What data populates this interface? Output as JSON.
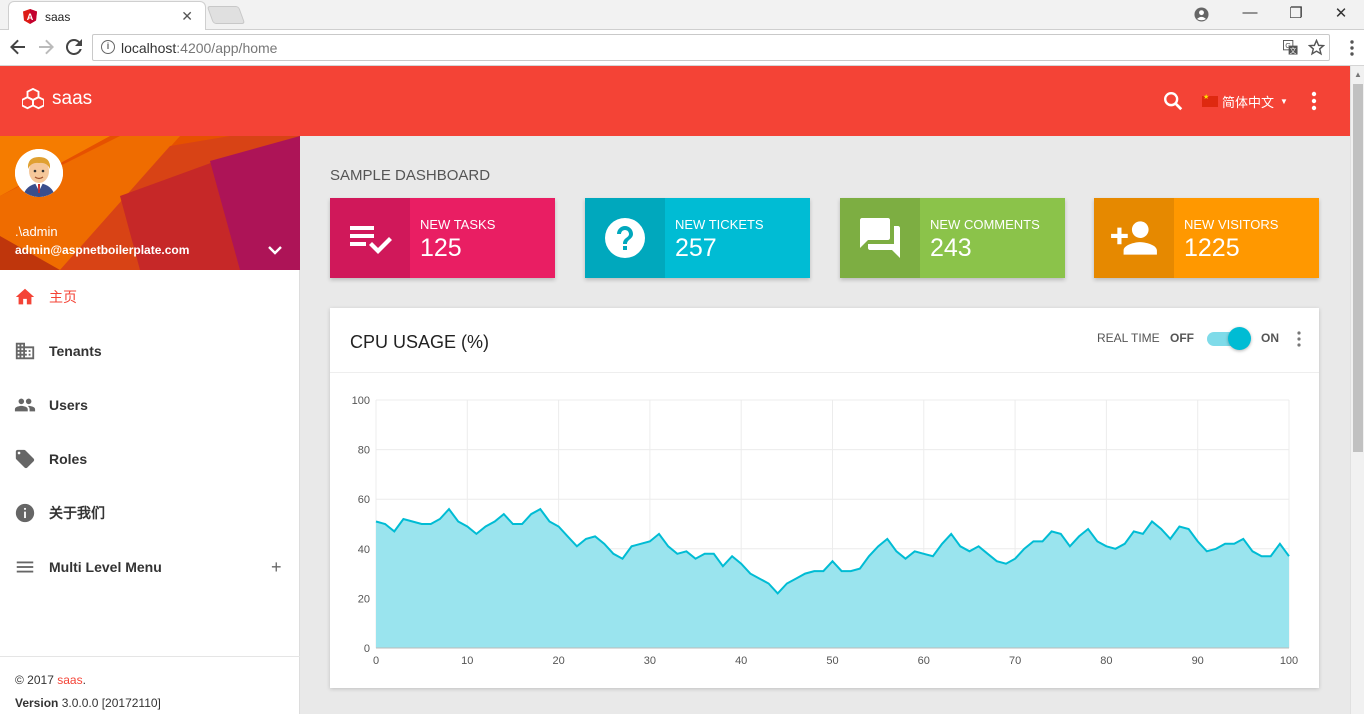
{
  "browser": {
    "tab_title": "saas",
    "tab_close": "✕",
    "url_host": "localhost",
    "url_path": ":4200/app/home",
    "window_minimize": "—",
    "window_maximize": "❐",
    "window_close": "✕"
  },
  "app": {
    "brand": "saas",
    "language": "简体中文",
    "accent_color": "#f44336"
  },
  "user": {
    "name": ".\\admin",
    "email": "admin@aspnetboilerplate.com"
  },
  "sidebar": {
    "items": [
      {
        "label": "主页",
        "icon": "home-icon",
        "active": true
      },
      {
        "label": "Tenants",
        "icon": "building-icon"
      },
      {
        "label": "Users",
        "icon": "people-icon"
      },
      {
        "label": "Roles",
        "icon": "tag-icon"
      },
      {
        "label": "关于我们",
        "icon": "info-icon"
      },
      {
        "label": "Multi Level Menu",
        "icon": "menu-icon",
        "expandable": "+"
      }
    ]
  },
  "footer": {
    "copyright_prefix": "© 2017 ",
    "brand": "saas",
    "brand_suffix": ".",
    "version_label": "Version",
    "version_value": " 3.0.0.0 [20172110]"
  },
  "dashboard": {
    "title": "SAMPLE DASHBOARD",
    "boxes": [
      {
        "label": "NEW TASKS",
        "value": "125",
        "icon": "playlist-check-icon",
        "color": "#e91e63",
        "dark": "#d0185a"
      },
      {
        "label": "NEW TICKETS",
        "value": "257",
        "icon": "help-icon",
        "color": "#00bcd4",
        "dark": "#00a8bd"
      },
      {
        "label": "NEW COMMENTS",
        "value": "243",
        "icon": "forum-icon",
        "color": "#8bc34a",
        "dark": "#7dae42"
      },
      {
        "label": "NEW VISITORS",
        "value": "1225",
        "icon": "person-add-icon",
        "color": "#ff9800",
        "dark": "#e68900"
      }
    ]
  },
  "cpu_card": {
    "title": "CPU USAGE (%)",
    "realtime_label": "REAL TIME",
    "off_label": "OFF",
    "on_label": "ON",
    "realtime_on": true
  },
  "chart_data": {
    "type": "area",
    "title": "CPU USAGE (%)",
    "xlim": [
      0,
      100
    ],
    "ylim": [
      0,
      100
    ],
    "x_ticks": [
      0,
      10,
      20,
      30,
      40,
      50,
      60,
      70,
      80,
      90,
      100
    ],
    "y_ticks": [
      0,
      20,
      40,
      60,
      80,
      100
    ],
    "grid": true,
    "line_color": "#00bcd4",
    "fill_color": "#9ae4ee",
    "values": [
      51,
      50,
      47,
      52,
      51,
      50,
      50,
      52,
      56,
      51,
      49,
      46,
      49,
      51,
      54,
      50,
      50,
      54,
      56,
      51,
      49,
      45,
      41,
      44,
      45,
      42,
      38,
      36,
      41,
      42,
      43,
      46,
      41,
      38,
      39,
      36,
      38,
      38,
      33,
      37,
      34,
      30,
      28,
      26,
      22,
      26,
      28,
      30,
      31,
      31,
      35,
      31,
      31,
      32,
      37,
      41,
      44,
      39,
      36,
      39,
      38,
      37,
      42,
      46,
      41,
      39,
      41,
      38,
      35,
      34,
      36,
      40,
      43,
      43,
      47,
      46,
      41,
      45,
      48,
      43,
      41,
      40,
      42,
      47,
      46,
      51,
      48,
      44,
      49,
      48,
      43,
      39,
      40,
      42,
      42,
      44,
      39,
      37,
      37,
      42,
      37
    ]
  }
}
